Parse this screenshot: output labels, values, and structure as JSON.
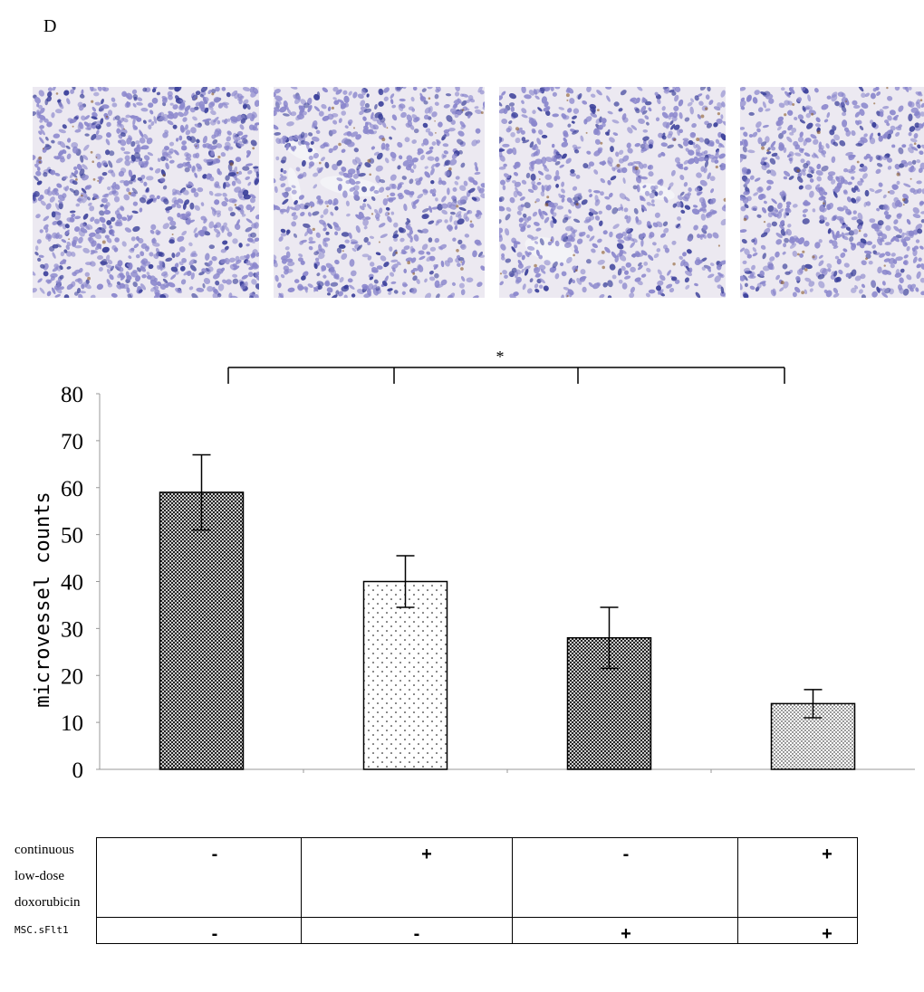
{
  "panel_label": "D",
  "images": [
    {
      "name": "micrograph-control",
      "stain_density": 0.95
    },
    {
      "name": "micrograph-doxorubicin",
      "stain_density": 0.75
    },
    {
      "name": "micrograph-msc-sflt1",
      "stain_density": 0.72
    },
    {
      "name": "micrograph-combination",
      "stain_density": 0.78
    }
  ],
  "colors": {
    "nuclei_dark": "#3a3f9a",
    "nuclei_light": "#8a86cc",
    "tissue_bg": "#ece9f1",
    "brown_stain": "#8a5a2a"
  },
  "chart_data": {
    "type": "bar",
    "categories": [
      "",
      "",
      "",
      ""
    ],
    "values": [
      59,
      40,
      28,
      14
    ],
    "errors": [
      8,
      5.5,
      6.5,
      3
    ],
    "patterns": [
      "crosshatch-dense",
      "dots-sparse",
      "crosshatch-dense",
      "dots-dense"
    ],
    "ylabel": "microvessel counts",
    "ylim": [
      0,
      80
    ],
    "yticks": [
      "0",
      "10",
      "20",
      "30",
      "40",
      "50",
      "60",
      "70",
      "80"
    ],
    "significance_label": "*",
    "grid": false
  },
  "table": {
    "row1_label_lines": [
      "continuous",
      "low-dose",
      "doxorubicin"
    ],
    "row2_label": "MSC.sFlt1",
    "row1_values": [
      "-",
      "+",
      "-",
      "+"
    ],
    "row2_values": [
      "-",
      "-",
      "+",
      "+"
    ]
  }
}
